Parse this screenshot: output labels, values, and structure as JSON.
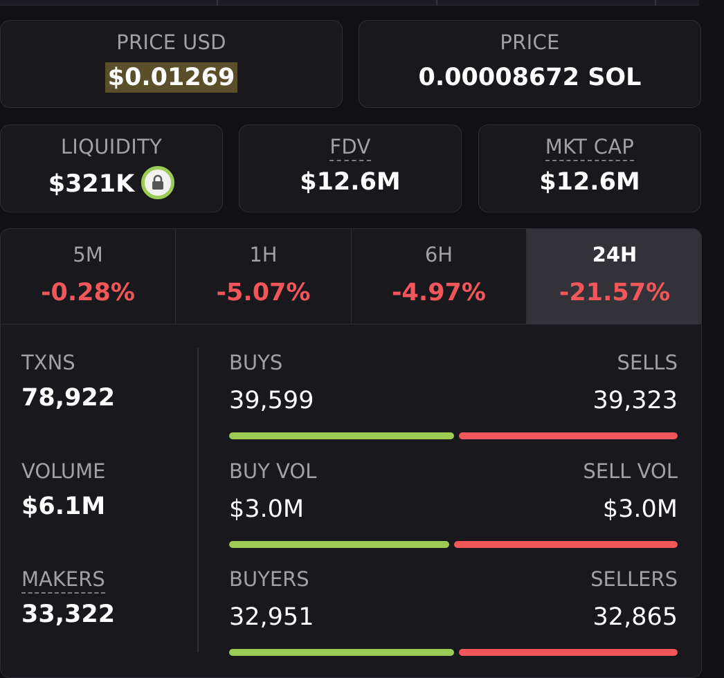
{
  "price_usd": {
    "label": "PRICE USD",
    "value": "$0.01269"
  },
  "price_native": {
    "label": "PRICE",
    "value": "0.00008672 SOL"
  },
  "liquidity": {
    "label": "LIQUIDITY",
    "value": "$321K",
    "icon": "lock-icon"
  },
  "fdv": {
    "label": "FDV",
    "value": "$12.6M"
  },
  "mkt_cap": {
    "label": "MKT CAP",
    "value": "$12.6M"
  },
  "timeframes": [
    {
      "label": "5M",
      "change": "-0.28%"
    },
    {
      "label": "1H",
      "change": "-5.07%"
    },
    {
      "label": "6H",
      "change": "-4.97%"
    },
    {
      "label": "24H",
      "change": "-21.57%",
      "active": true
    }
  ],
  "txns": {
    "label": "TXNS",
    "value": "78,922"
  },
  "volume": {
    "label": "VOLUME",
    "value": "$6.1M"
  },
  "makers": {
    "label": "MAKERS",
    "value": "33,322"
  },
  "buys_sells": {
    "left_label": "BUYS",
    "left_value": "39,599",
    "right_label": "SELLS",
    "right_value": "39,323",
    "buy_fraction": 0.5017
  },
  "buy_sell_vol": {
    "left_label": "BUY VOL",
    "left_value": "$3.0M",
    "right_label": "SELL VOL",
    "right_value": "$3.0M",
    "buy_fraction": 0.49
  },
  "buyers_sellers": {
    "left_label": "BUYERS",
    "left_value": "32,951",
    "right_label": "SELLERS",
    "right_value": "32,865",
    "buy_fraction": 0.5013
  },
  "colors": {
    "positive": "#9ccc53",
    "negative": "#f0565a",
    "background": "#111115",
    "card": "#18181d"
  }
}
